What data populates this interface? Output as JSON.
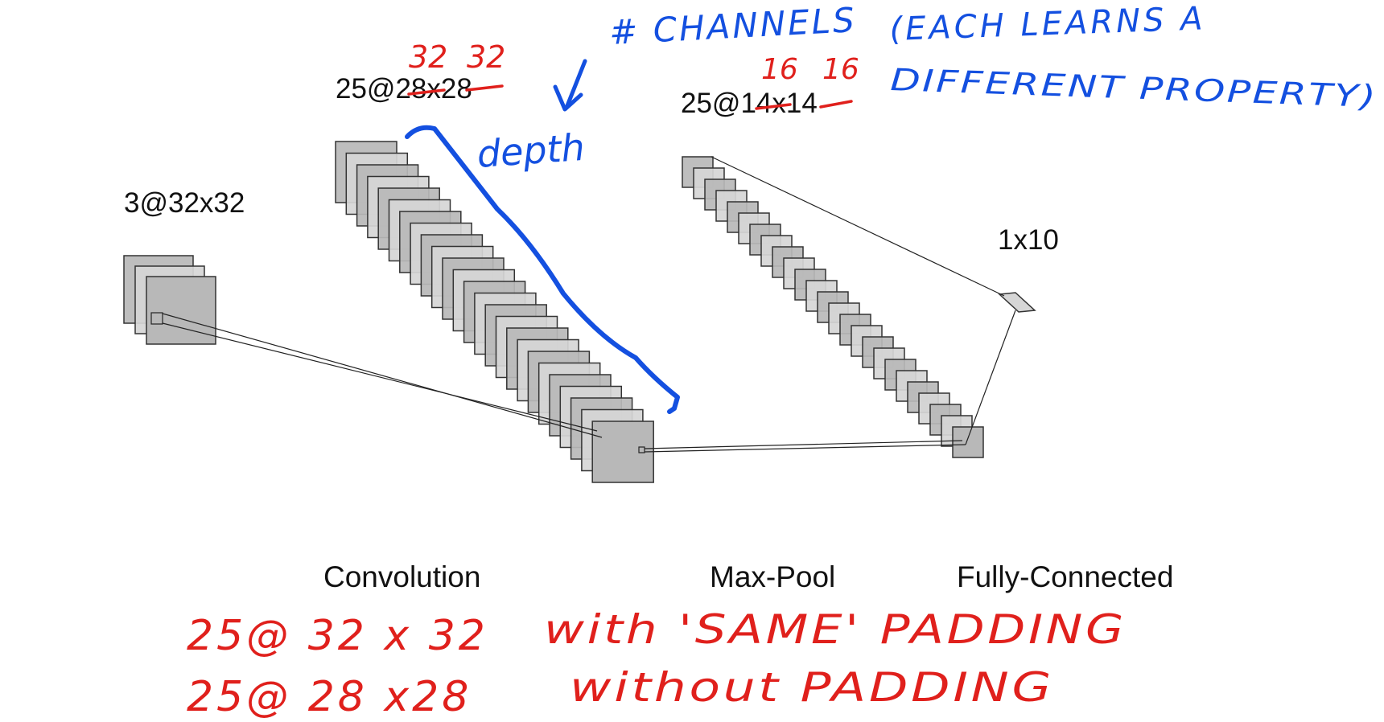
{
  "colors": {
    "ink": "#111111",
    "annotation_red": "#e0201c",
    "annotation_blue": "#1450e0",
    "map_fill": "#b8b8b8",
    "map_fill_light": "#d6d6d6",
    "map_stroke": "#333333"
  },
  "layers": {
    "input": {
      "label": "3@32x32",
      "map_count": 3
    },
    "conv": {
      "label_prefix": "25@",
      "label_dims": "28x28",
      "map_count": 25,
      "stage": "Convolution",
      "corrected_dims": [
        "32",
        "32"
      ]
    },
    "pool": {
      "label_prefix": "25@",
      "label_dims": "14x14",
      "map_count": 25,
      "stage": "Max-Pool",
      "corrected_dims": [
        "16",
        "16"
      ]
    },
    "fc": {
      "label": "1x10",
      "stage": "Fully-Connected"
    }
  },
  "annotations": {
    "channels_title": "# CHANNELS",
    "channels_note_line1": "(EACH LEARNS A",
    "channels_note_line2": "DIFFERENT PROPERTY)",
    "depth": "depth",
    "padding_same_dims": "25@ 32 x 32",
    "padding_same_text": "with 'SAME' PADDING",
    "padding_none_dims": "25@ 28 x28",
    "padding_none_text": "without PADDING"
  }
}
